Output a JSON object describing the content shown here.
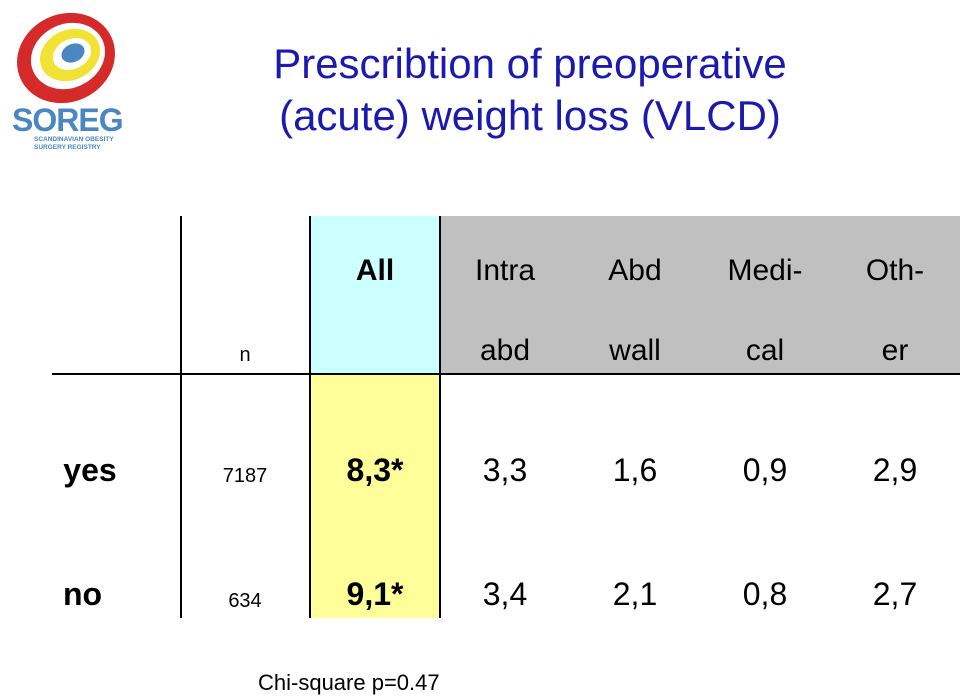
{
  "logo": {
    "name": "SOREG",
    "subtitle_line1": "SCANDINAVIAN OBESITY",
    "subtitle_line2": "SURGERY REGISTRY"
  },
  "title": {
    "line1": "Prescribtion of preoperative",
    "line2": "(acute) weight loss (VLCD)"
  },
  "table": {
    "n_header": "n",
    "columns": [
      {
        "top": "All",
        "bottom": ""
      },
      {
        "top": "Intra",
        "bottom": "abd"
      },
      {
        "top": "Abd",
        "bottom": "wall"
      },
      {
        "top": "Medi-",
        "bottom": "cal"
      },
      {
        "top": "Oth-",
        "bottom": "er"
      }
    ],
    "rows": [
      {
        "label": "yes",
        "n": "7187",
        "values": [
          "8,3*",
          "3,3",
          "1,6",
          "0,9",
          "2,9"
        ]
      },
      {
        "label": "no",
        "n": "634",
        "values": [
          "9,1*",
          "3,4",
          "2,1",
          "0,8",
          "2,7"
        ]
      }
    ]
  },
  "footnote": "Chi-square p=0.47",
  "colors": {
    "title": "#1a1ab0",
    "all_header_bg": "#ccffff",
    "subgroup_header_bg": "#c0c0c0",
    "all_values_bg": "#ffff99",
    "logo_blue": "#4a86c4",
    "logo_red": "#d42a2a",
    "logo_yellow": "#f2e233"
  }
}
